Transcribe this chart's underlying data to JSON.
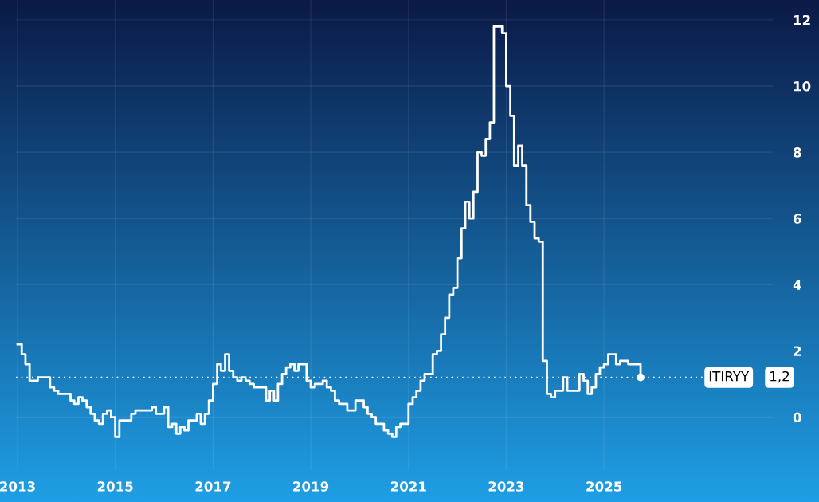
{
  "chart_data": {
    "type": "step",
    "x": [
      "2013-01",
      "2013-02",
      "2013-03",
      "2013-04",
      "2013-05",
      "2013-06",
      "2013-07",
      "2013-08",
      "2013-09",
      "2013-10",
      "2013-11",
      "2013-12",
      "2014-01",
      "2014-02",
      "2014-03",
      "2014-04",
      "2014-05",
      "2014-06",
      "2014-07",
      "2014-08",
      "2014-09",
      "2014-10",
      "2014-11",
      "2014-12",
      "2015-01",
      "2015-02",
      "2015-03",
      "2015-04",
      "2015-05",
      "2015-06",
      "2015-07",
      "2015-08",
      "2015-09",
      "2015-10",
      "2015-11",
      "2015-12",
      "2016-01",
      "2016-02",
      "2016-03",
      "2016-04",
      "2016-05",
      "2016-06",
      "2016-07",
      "2016-08",
      "2016-09",
      "2016-10",
      "2016-11",
      "2016-12",
      "2017-01",
      "2017-02",
      "2017-03",
      "2017-04",
      "2017-05",
      "2017-06",
      "2017-07",
      "2017-08",
      "2017-09",
      "2017-10",
      "2017-11",
      "2017-12",
      "2018-01",
      "2018-02",
      "2018-03",
      "2018-04",
      "2018-05",
      "2018-06",
      "2018-07",
      "2018-08",
      "2018-09",
      "2018-10",
      "2018-11",
      "2018-12",
      "2019-01",
      "2019-02",
      "2019-03",
      "2019-04",
      "2019-05",
      "2019-06",
      "2019-07",
      "2019-08",
      "2019-09",
      "2019-10",
      "2019-11",
      "2019-12",
      "2020-01",
      "2020-02",
      "2020-03",
      "2020-04",
      "2020-05",
      "2020-06",
      "2020-07",
      "2020-08",
      "2020-09",
      "2020-10",
      "2020-11",
      "2020-12",
      "2021-01",
      "2021-02",
      "2021-03",
      "2021-04",
      "2021-05",
      "2021-06",
      "2021-07",
      "2021-08",
      "2021-09",
      "2021-10",
      "2021-11",
      "2021-12",
      "2022-01",
      "2022-02",
      "2022-03",
      "2022-04",
      "2022-05",
      "2022-06",
      "2022-07",
      "2022-08",
      "2022-09",
      "2022-10",
      "2022-11",
      "2022-12",
      "2023-01",
      "2023-02",
      "2023-03",
      "2023-04",
      "2023-05",
      "2023-06",
      "2023-07",
      "2023-08",
      "2023-09",
      "2023-10",
      "2023-11",
      "2023-12",
      "2024-01",
      "2024-02",
      "2024-03",
      "2024-04",
      "2024-05",
      "2024-06",
      "2024-07",
      "2024-08",
      "2024-09",
      "2024-10",
      "2024-11",
      "2024-12",
      "2025-01",
      "2025-02",
      "2025-03",
      "2025-04",
      "2025-05",
      "2025-06",
      "2025-07",
      "2025-08",
      "2025-09",
      "2025-10"
    ],
    "series": [
      {
        "color": "#ffffff",
        "values": [
          2.2,
          1.9,
          1.6,
          1.1,
          1.1,
          1.2,
          1.2,
          1.2,
          0.9,
          0.8,
          0.7,
          0.7,
          0.7,
          0.5,
          0.4,
          0.6,
          0.5,
          0.3,
          0.1,
          -0.1,
          -0.2,
          0.1,
          0.2,
          0.0,
          -0.6,
          -0.1,
          -0.1,
          -0.1,
          0.1,
          0.2,
          0.2,
          0.2,
          0.2,
          0.3,
          0.1,
          0.1,
          0.3,
          -0.3,
          -0.2,
          -0.5,
          -0.3,
          -0.4,
          -0.1,
          -0.1,
          0.1,
          -0.2,
          0.1,
          0.5,
          1.0,
          1.6,
          1.4,
          1.9,
          1.4,
          1.2,
          1.1,
          1.2,
          1.1,
          1.0,
          0.9,
          0.9,
          0.9,
          0.5,
          0.8,
          0.5,
          1.0,
          1.3,
          1.5,
          1.6,
          1.4,
          1.6,
          1.6,
          1.1,
          0.9,
          1.0,
          1.0,
          1.1,
          0.9,
          0.8,
          0.5,
          0.4,
          0.4,
          0.2,
          0.2,
          0.5,
          0.5,
          0.3,
          0.1,
          0.0,
          -0.2,
          -0.2,
          -0.4,
          -0.5,
          -0.6,
          -0.3,
          -0.2,
          -0.2,
          0.4,
          0.6,
          0.8,
          1.1,
          1.3,
          1.3,
          1.9,
          2.0,
          2.5,
          3.0,
          3.7,
          3.9,
          4.8,
          5.7,
          6.5,
          6.0,
          6.8,
          8.0,
          7.9,
          8.4,
          8.9,
          11.8,
          11.8,
          11.6,
          10.0,
          9.1,
          7.6,
          8.2,
          7.6,
          6.4,
          5.9,
          5.4,
          5.3,
          1.7,
          0.7,
          0.6,
          0.8,
          0.8,
          1.2,
          0.8,
          0.8,
          0.8,
          1.3,
          1.1,
          0.7,
          0.9,
          1.3,
          1.5,
          1.6,
          1.9,
          1.9,
          1.6,
          1.7,
          1.7,
          1.6,
          1.6,
          1.6,
          1.2
        ]
      }
    ],
    "line_style": "solid",
    "xlim": [
      "2012-12-20",
      "2028-06-15"
    ],
    "xticks": [
      "2013",
      "2015",
      "2017",
      "2019",
      "2021",
      "2023",
      "2025"
    ],
    "ylim": [
      -1.6,
      12.6
    ],
    "yticks": [
      0,
      2,
      4,
      6,
      8,
      10,
      12
    ],
    "grid": true,
    "ref_lines": [
      {
        "axis": "y",
        "value": 1.2,
        "label": "ITIRYY",
        "color": "#ffffff",
        "line_style": "dotted"
      }
    ],
    "annotations": [
      "1,2"
    ]
  }
}
